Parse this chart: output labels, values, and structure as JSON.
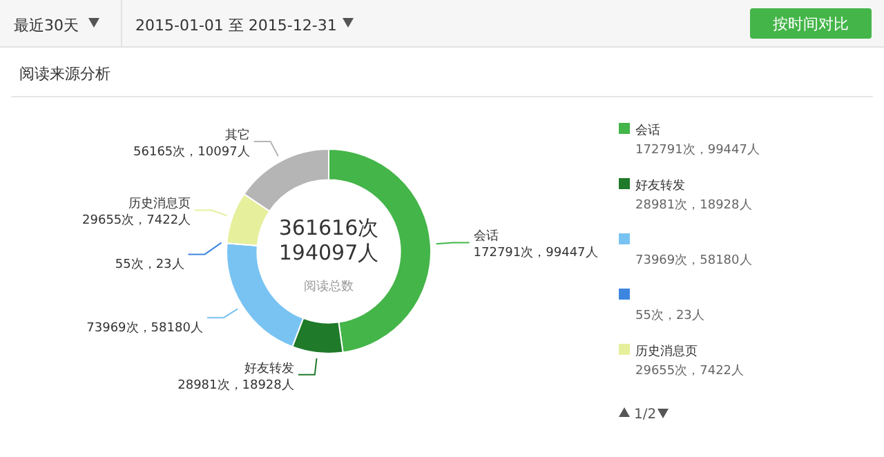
{
  "chart_data": {
    "type": "donut",
    "title": "阅读来源分析",
    "categories": [
      "会话",
      "好友转发",
      null,
      null,
      "历史消息页",
      "其它"
    ],
    "values": [
      172791,
      28981,
      73969,
      55,
      29655,
      56165
    ],
    "colors": [
      "#44b549",
      "#1f7a2a",
      "#79c3f2",
      "#3d86e0",
      "#e6ef9c",
      "#b5b5b5"
    ],
    "value_labels": [
      "172791次，99447人",
      "28981次，18928人",
      "73969次，58180人",
      "55次，23人",
      "29655次，7422人",
      "56165次，10097人"
    ],
    "legend": "right",
    "annotations": [
      "最近30天",
      "2015-01-01 至 2015-12-31",
      "按时间对比",
      "361616次",
      "194097人",
      "阅读总数",
      "1/2"
    ]
  }
}
